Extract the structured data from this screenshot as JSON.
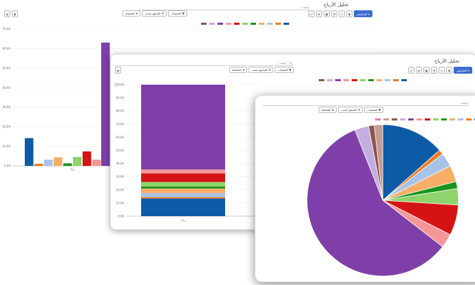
{
  "app": {
    "title": "تحليل الأرباح"
  },
  "toolbar": {
    "measures_label": "المقاييس ▾"
  },
  "search": {
    "placeholder": "إبحث..."
  },
  "facets": {
    "filters": "▼ التصفيات",
    "group_by": "☰ التجميع حسب",
    "favorites": "★ المفضلة"
  },
  "colors": [
    "#0d5aa7",
    "#f07a1b",
    "#a8c3ea",
    "#f8ad66",
    "#18941b",
    "#8ed36c",
    "#d41414",
    "#f59696",
    "#7f3fa8",
    "#c3aee0",
    "#8c564b",
    "#c49c94",
    "#e377c2"
  ],
  "chart_data": [
    {
      "type": "bar",
      "series": [
        {
          "name": "",
          "values": [
            14.2
          ]
        },
        {
          "name": "",
          "values": [
            1.1
          ]
        },
        {
          "name": "",
          "values": [
            3.2
          ]
        },
        {
          "name": "",
          "values": [
            4.4
          ]
        },
        {
          "name": "",
          "values": [
            1.3
          ]
        },
        {
          "name": "",
          "values": [
            4.6
          ]
        },
        {
          "name": "",
          "values": [
            7.4
          ]
        },
        {
          "name": "",
          "values": [
            3.2
          ]
        },
        {
          "name": "",
          "values": [
            63.0
          ]
        }
      ],
      "yticks": [
        "0.00",
        "10.00",
        "20.00",
        "30.00",
        "40.00",
        "50.00",
        "60.00",
        "70.00"
      ],
      "ylim": [
        0,
        70
      ],
      "xlabel": "ريال"
    },
    {
      "type": "bar",
      "stacked": true,
      "percent": true,
      "series": [
        {
          "name": "",
          "values": [
            13.5
          ]
        },
        {
          "name": "",
          "values": [
            1.0
          ]
        },
        {
          "name": "",
          "values": [
            3.0
          ]
        },
        {
          "name": "",
          "values": [
            3.5
          ]
        },
        {
          "name": "",
          "values": [
            1.5
          ]
        },
        {
          "name": "",
          "values": [
            3.5
          ]
        },
        {
          "name": "",
          "values": [
            6.5
          ]
        },
        {
          "name": "",
          "values": [
            3.0
          ]
        },
        {
          "name": "",
          "values": [
            64.5
          ]
        }
      ],
      "yticks": [
        "0.00",
        "10.00",
        "20.00",
        "30.00",
        "40.00",
        "50.00",
        "60.00",
        "70.00",
        "80.00",
        "90.00",
        "100.00"
      ],
      "ylim": [
        0,
        100
      ],
      "xlabel": "ريال"
    },
    {
      "type": "pie",
      "values": [
        13.5,
        1.0,
        3.0,
        3.5,
        1.5,
        3.5,
        6.5,
        3.0,
        58.5,
        3.0,
        1.2,
        1.8
      ],
      "colors": [
        "#0d5aa7",
        "#f07a1b",
        "#a8c3ea",
        "#f8ad66",
        "#18941b",
        "#8ed36c",
        "#d41414",
        "#f59696",
        "#7f3fa8",
        "#c3aee0",
        "#8c564b",
        "#c49c94"
      ]
    }
  ]
}
